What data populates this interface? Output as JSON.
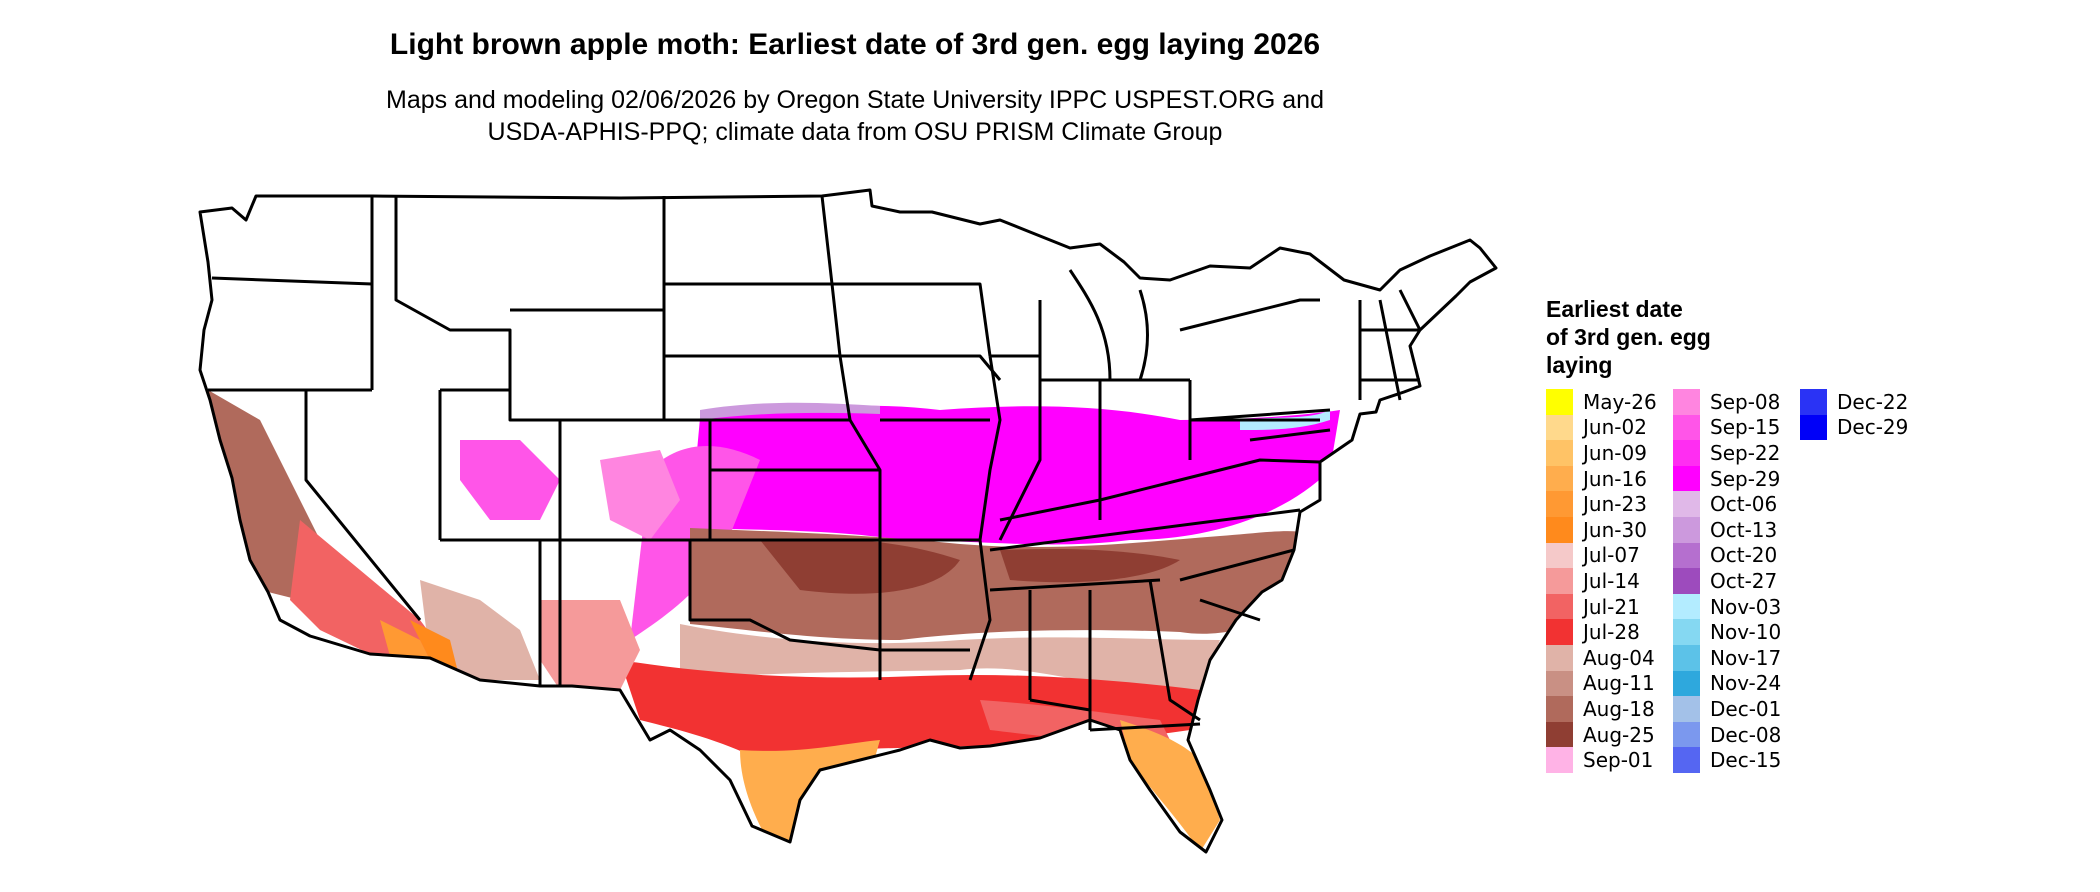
{
  "title": "Light brown apple moth: Earliest date of 3rd gen. egg laying 2026",
  "subtitle_line1": "Maps and modeling 02/06/2026 by Oregon State University IPPC USPEST.ORG and",
  "subtitle_line2": "USDA-APHIS-PPQ; climate data from OSU PRISM Climate Group",
  "legend": {
    "title_lines": [
      "Earliest date",
      "of 3rd gen. egg",
      "laying"
    ],
    "items": [
      {
        "label": "May-26",
        "color": "#ffff00"
      },
      {
        "label": "Jun-02",
        "color": "#ffd98c"
      },
      {
        "label": "Jun-09",
        "color": "#ffc366"
      },
      {
        "label": "Jun-16",
        "color": "#ffad4d"
      },
      {
        "label": "Jun-23",
        "color": "#ff9933"
      },
      {
        "label": "Jun-30",
        "color": "#ff8a1c"
      },
      {
        "label": "Jul-07",
        "color": "#f5c9c9"
      },
      {
        "label": "Jul-14",
        "color": "#f59a9a"
      },
      {
        "label": "Jul-21",
        "color": "#f26363"
      },
      {
        "label": "Jul-28",
        "color": "#f23232"
      },
      {
        "label": "Aug-04",
        "color": "#e0b3a8"
      },
      {
        "label": "Aug-11",
        "color": "#c99084"
      },
      {
        "label": "Aug-18",
        "color": "#b06a5c"
      },
      {
        "label": "Aug-25",
        "color": "#8f3e33"
      },
      {
        "label": "Sep-01",
        "color": "#ffb3e6"
      },
      {
        "label": "Sep-08",
        "color": "#ff85e0"
      },
      {
        "label": "Sep-15",
        "color": "#ff55e8"
      },
      {
        "label": "Sep-22",
        "color": "#ff2df2"
      },
      {
        "label": "Sep-29",
        "color": "#ff00ff"
      },
      {
        "label": "Oct-06",
        "color": "#e0b8e8"
      },
      {
        "label": "Oct-13",
        "color": "#cc99dd"
      },
      {
        "label": "Oct-20",
        "color": "#b56fcf"
      },
      {
        "label": "Oct-27",
        "color": "#9d4bbd"
      },
      {
        "label": "Nov-03",
        "color": "#b3ecff"
      },
      {
        "label": "Nov-10",
        "color": "#85d8f2"
      },
      {
        "label": "Nov-17",
        "color": "#5cc2e8"
      },
      {
        "label": "Nov-24",
        "color": "#2ea8dd"
      },
      {
        "label": "Dec-01",
        "color": "#a3c1e8"
      },
      {
        "label": "Dec-08",
        "color": "#7b98ee"
      },
      {
        "label": "Dec-15",
        "color": "#5566f2"
      },
      {
        "label": "Dec-22",
        "color": "#2a33f5"
      },
      {
        "label": "Dec-29",
        "color": "#0000f8"
      }
    ]
  }
}
